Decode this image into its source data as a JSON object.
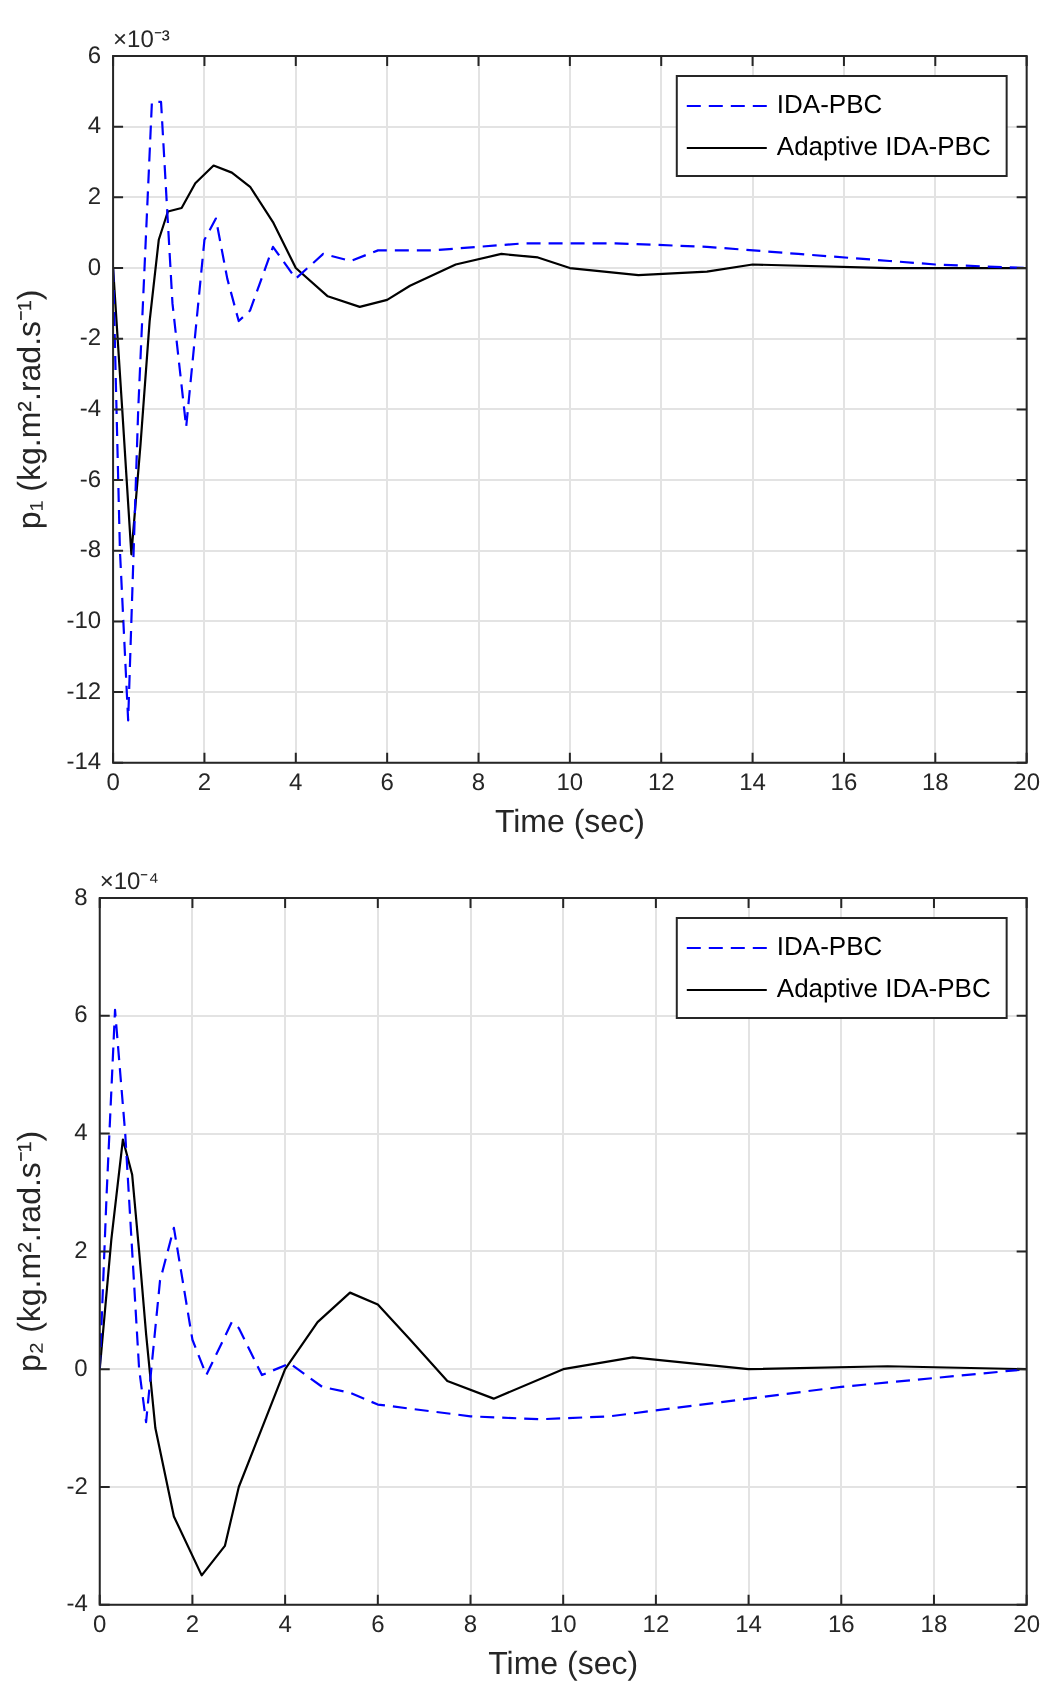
{
  "chart_data": [
    {
      "type": "line",
      "xlabel": "Time (sec)",
      "ylabel": "p₁ (kg.m².rad.s⁻¹)",
      "annotations": [
        "×10⁻³"
      ],
      "xlim": [
        0,
        20
      ],
      "xticks": [
        0,
        2,
        4,
        6,
        8,
        10,
        12,
        14,
        16,
        18,
        20
      ],
      "ylim": [
        -14,
        6
      ],
      "yticks": [
        -14,
        -12,
        -10,
        -8,
        -6,
        -4,
        -2,
        0,
        2,
        4,
        6
      ],
      "grid": true,
      "legend": "top right",
      "marker": "none",
      "series": [
        {
          "name": "IDA-PBC",
          "color": "#0000ff",
          "line_style": "dashed",
          "x": [
            0,
            0.15,
            0.33,
            0.55,
            0.85,
            1.05,
            1.3,
            1.6,
            2.0,
            2.25,
            2.5,
            2.75,
            3.0,
            3.5,
            4.0,
            4.6,
            5.2,
            5.8,
            7,
            9,
            11,
            13,
            15,
            17,
            18,
            20
          ],
          "values": [
            0,
            -8,
            -12.8,
            -4,
            4.7,
            4.7,
            -1,
            -4.5,
            0.8,
            1.4,
            -0.3,
            -1.5,
            -1.2,
            0.6,
            -0.3,
            0.4,
            0.2,
            0.5,
            0.5,
            0.7,
            0.7,
            0.6,
            0.4,
            0.2,
            0.1,
            0
          ]
        },
        {
          "name": "Adaptive IDA-PBC",
          "color": "#000000",
          "line_style": "solid",
          "x": [
            0,
            0.2,
            0.4,
            0.6,
            0.8,
            1.0,
            1.2,
            1.5,
            1.8,
            2.2,
            2.6,
            3.0,
            3.5,
            4.0,
            4.7,
            5.4,
            6.0,
            6.5,
            7.5,
            8.5,
            9.3,
            10,
            11.5,
            13,
            14,
            17,
            20
          ],
          "values": [
            0,
            -4,
            -8.1,
            -5,
            -1.5,
            0.8,
            1.6,
            1.7,
            2.4,
            2.9,
            2.7,
            2.3,
            1.3,
            0,
            -0.8,
            -1.1,
            -0.9,
            -0.5,
            0.1,
            0.4,
            0.3,
            0,
            -0.2,
            -0.1,
            0.1,
            0,
            0
          ]
        }
      ]
    },
    {
      "type": "line",
      "xlabel": "Time (sec)",
      "ylabel": "p₂ (kg.m².rad.s⁻¹)",
      "annotations": [
        "×10⁻⁴"
      ],
      "xlim": [
        0,
        20
      ],
      "xticks": [
        0,
        2,
        4,
        6,
        8,
        10,
        12,
        14,
        16,
        18,
        20
      ],
      "ylim": [
        -4,
        8
      ],
      "yticks": [
        -4,
        -2,
        0,
        2,
        4,
        6,
        8
      ],
      "grid": true,
      "legend": "top right",
      "marker": "none",
      "series": [
        {
          "name": "IDA-PBC",
          "color": "#0000ff",
          "line_style": "dashed",
          "x": [
            0,
            0.15,
            0.33,
            0.55,
            0.85,
            1.0,
            1.3,
            1.6,
            2.0,
            2.3,
            2.85,
            3.0,
            3.5,
            4.1,
            4.8,
            5.4,
            6,
            8,
            9.5,
            11,
            12,
            14,
            16,
            18,
            20
          ],
          "values": [
            0,
            3,
            6.1,
            4,
            0,
            -0.9,
            1.5,
            2.4,
            0.5,
            -0.1,
            0.8,
            0.7,
            -0.1,
            0.1,
            -0.3,
            -0.4,
            -0.6,
            -0.8,
            -0.85,
            -0.8,
            -0.7,
            -0.5,
            -0.3,
            -0.15,
            0
          ]
        },
        {
          "name": "Adaptive IDA-PBC",
          "color": "#000000",
          "line_style": "solid",
          "x": [
            0,
            0.25,
            0.5,
            0.7,
            0.85,
            1.0,
            1.2,
            1.6,
            2.2,
            2.7,
            3.0,
            3.5,
            4.0,
            4.7,
            5.4,
            6.0,
            6.7,
            7.5,
            8.5,
            10,
            11.5,
            14,
            17,
            20
          ],
          "values": [
            0,
            2.2,
            3.9,
            3.3,
            2,
            0.6,
            -1,
            -2.5,
            -3.5,
            -3,
            -2,
            -1,
            0,
            0.8,
            1.3,
            1.1,
            0.5,
            -0.2,
            -0.5,
            0,
            0.2,
            0,
            0.05,
            0
          ]
        }
      ]
    }
  ]
}
